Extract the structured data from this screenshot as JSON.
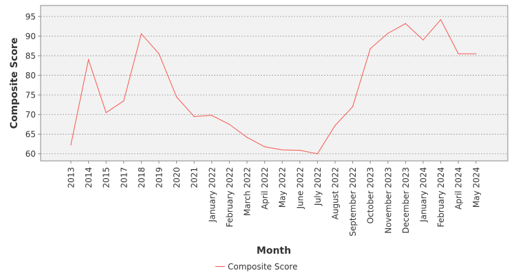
{
  "chart_data": {
    "type": "line",
    "title": "",
    "xlabel": "Month",
    "ylabel": "Composite Score",
    "categories": [
      "2013",
      "2014",
      "2015",
      "2017",
      "2018",
      "2019",
      "2020",
      "2021",
      "January 2022",
      "February 2022",
      "March 2022",
      "April 2022",
      "May 2022",
      "June 2022",
      "July 2022",
      "August 2022",
      "September 2022",
      "October 2023",
      "November 2023",
      "December 2023",
      "January 2024",
      "February 2024",
      "April 2024",
      "May 2024"
    ],
    "series": [
      {
        "name": "Composite Score",
        "values": [
          62.3,
          84.0,
          70.5,
          73.5,
          90.6,
          85.5,
          74.5,
          69.5,
          69.8,
          67.5,
          64.2,
          61.8,
          61.0,
          60.9,
          60.0,
          67.2,
          72.0,
          86.8,
          90.7,
          93.2,
          89.0,
          94.2,
          85.5,
          85.5
        ]
      }
    ],
    "ylim": [
      58.2,
      97.8
    ],
    "yticks": [
      60,
      65,
      70,
      75,
      80,
      85,
      90,
      95
    ],
    "grid": true,
    "legend_position": "bottom",
    "colors": {
      "series": "#f8564e",
      "plot_background": "#f2f2f2",
      "gridline": "#999999"
    }
  }
}
